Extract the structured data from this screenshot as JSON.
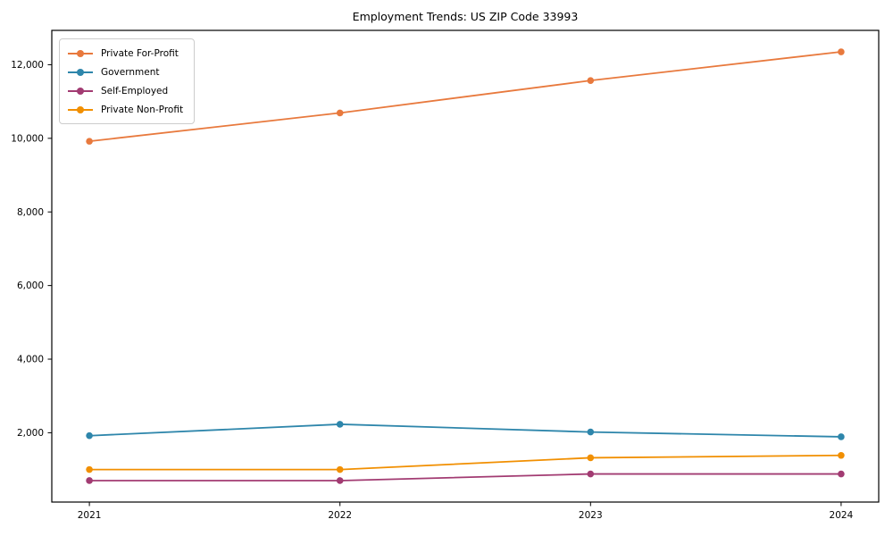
{
  "figure": {
    "background": "#ffffff",
    "text_color": "#000000",
    "spine_color": "#000000",
    "legend_border_color": "#cccccc"
  },
  "chart_data": {
    "type": "line",
    "title": "Employment Trends: US ZIP Code 33993",
    "xlabel": "",
    "ylabel": "",
    "x": [
      2021,
      2022,
      2023,
      2024
    ],
    "x_tick_labels": [
      "2021",
      "2022",
      "2023",
      "2024"
    ],
    "yticks": [
      2000,
      4000,
      6000,
      8000,
      10000,
      12000
    ],
    "ytick_labels": [
      "2,000",
      "4,000",
      "6,000",
      "8,000",
      "10,000",
      "12,000"
    ],
    "xlim": [
      2020.85,
      2024.15
    ],
    "ylim": [
      117,
      12933
    ],
    "grid": false,
    "marker": "circle",
    "legend_position": "upper-left",
    "series": [
      {
        "name": "Private For-Profit",
        "color": "#e8793d",
        "values": [
          9920,
          10690,
          11570,
          12350
        ]
      },
      {
        "name": "Government",
        "color": "#2e86ab",
        "values": [
          1920,
          2230,
          2020,
          1890
        ]
      },
      {
        "name": "Self-Employed",
        "color": "#a23b72",
        "values": [
          700,
          700,
          880,
          880
        ]
      },
      {
        "name": "Private Non-Profit",
        "color": "#f18f01",
        "values": [
          1000,
          1000,
          1320,
          1385
        ]
      }
    ]
  }
}
